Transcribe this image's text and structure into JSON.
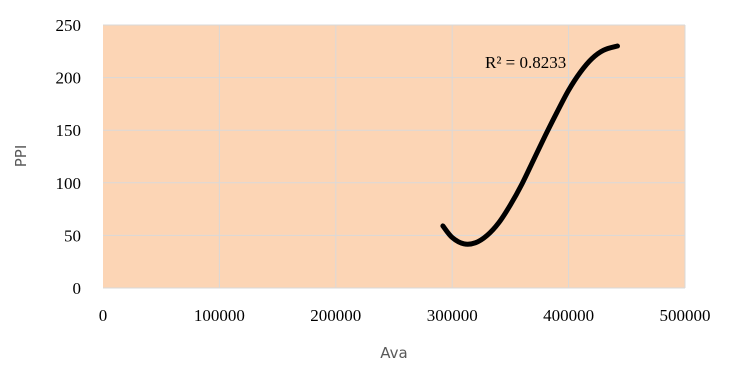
{
  "chart_data": {
    "type": "line",
    "xlabel": "Ava",
    "ylabel": "PPI",
    "xlim": [
      0,
      500000
    ],
    "ylim": [
      0,
      250
    ],
    "x_ticks": [
      "0",
      "100000",
      "200000",
      "300000",
      "400000",
      "500000"
    ],
    "y_ticks": [
      "0",
      "50",
      "100",
      "150",
      "200",
      "250"
    ],
    "grid": true,
    "legend": "none",
    "annotation": "R² = 0.8233",
    "plot_background": "#fcd5b5",
    "grid_color": "#d9d9d9",
    "line_color": "#000000",
    "series": [
      {
        "x": [
          292000,
          300000,
          310000,
          320000,
          330000,
          340000,
          350000,
          360000,
          370000,
          380000,
          390000,
          400000,
          410000,
          420000,
          430000,
          442000
        ],
        "values": [
          59,
          48,
          42,
          43,
          50,
          62,
          79,
          99,
          122,
          145,
          167,
          188,
          205,
          218,
          226,
          230
        ]
      }
    ]
  }
}
